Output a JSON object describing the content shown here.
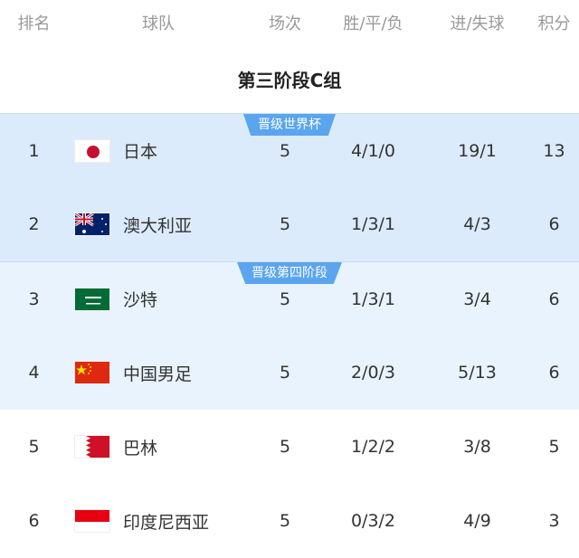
{
  "header": {
    "rank": "排名",
    "team": "球队",
    "played": "场次",
    "wdl": "胜/平/负",
    "goals": "进/失球",
    "points": "积分"
  },
  "group_title": "第三阶段C组",
  "zones": {
    "qualify": "晋级世界杯",
    "playoff": "晋级第四阶段"
  },
  "colors": {
    "qualify_bg": "#dcebfb",
    "playoff_bg": "#e8f3fd",
    "badge": "#5aa5ee"
  },
  "rows": [
    {
      "rank": "1",
      "team": "日本",
      "flag": "japan-flag",
      "played": "5",
      "wdl": "4/1/0",
      "goals": "19/1",
      "points": "13"
    },
    {
      "rank": "2",
      "team": "澳大利亚",
      "flag": "australia-flag",
      "played": "5",
      "wdl": "1/3/1",
      "goals": "4/3",
      "points": "6"
    },
    {
      "rank": "3",
      "team": "沙特",
      "flag": "saudi-arabia-flag",
      "played": "5",
      "wdl": "1/3/1",
      "goals": "3/4",
      "points": "6"
    },
    {
      "rank": "4",
      "team": "中国男足",
      "flag": "china-flag",
      "played": "5",
      "wdl": "2/0/3",
      "goals": "5/13",
      "points": "6"
    },
    {
      "rank": "5",
      "team": "巴林",
      "flag": "bahrain-flag",
      "played": "5",
      "wdl": "1/2/2",
      "goals": "3/8",
      "points": "5"
    },
    {
      "rank": "6",
      "team": "印度尼西亚",
      "flag": "indonesia-flag",
      "played": "5",
      "wdl": "0/3/2",
      "goals": "4/9",
      "points": "3"
    }
  ]
}
